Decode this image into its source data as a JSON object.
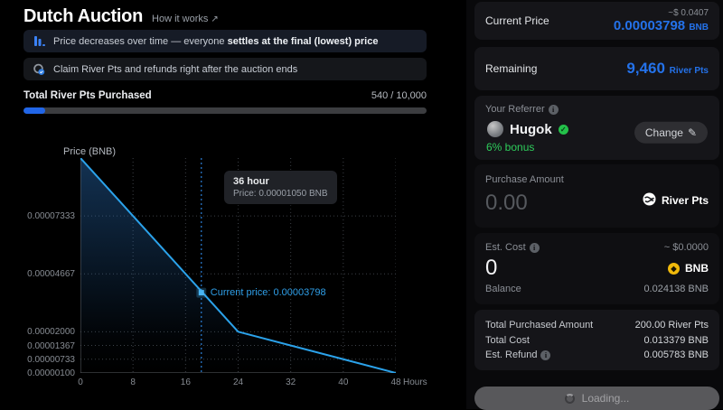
{
  "header": {
    "title": "Dutch Auction",
    "link": "How it works",
    "link_arrow": "↗"
  },
  "banners": [
    {
      "icon": "bar-chart-icon",
      "text_normal": "Price decreases over time — everyone ",
      "text_bold": "settles at the final (lowest) price"
    },
    {
      "icon": "claim-coins-icon",
      "text_normal": "Claim River Pts and refunds right after the auction ends",
      "text_bold": ""
    }
  ],
  "progress": {
    "label": "Total River Pts Purchased",
    "value": "540 / 10,000",
    "percent": 5.4
  },
  "chart_data": {
    "type": "line",
    "ylabel": "Price (BNB)",
    "xlabel": "Hours",
    "x": [
      0,
      24,
      48
    ],
    "y": [
      0.0001,
      2e-05,
      1e-06
    ],
    "xlim": [
      0,
      48
    ],
    "ylim": [
      1e-06,
      0.0001
    ],
    "xticks": [
      0,
      8,
      16,
      24,
      32,
      40,
      48
    ],
    "yticks": [
      1e-06,
      7.33e-06,
      1.367e-05,
      2e-05,
      4.667e-05,
      7.333e-05
    ],
    "ytick_labels": [
      "0.00000100",
      "0.00000733",
      "0.00001367",
      "0.00002000",
      "0.00004667",
      "0.00007333"
    ],
    "grid": true,
    "line_color": "#2ba2ea",
    "current_point": {
      "x": 18.4,
      "y": 3.798e-05,
      "label": "Current price: 0.00003798"
    },
    "tooltip": {
      "title": "36 hour",
      "value": "Price: 0.00001050 BNB"
    }
  },
  "panel": {
    "current_price": {
      "label": "Current Price",
      "usd": "~$ 0.0407",
      "value": "0.00003798",
      "unit": "BNB"
    },
    "remaining": {
      "label": "Remaining",
      "value": "9,460",
      "unit": "River Pts"
    },
    "referrer": {
      "label": "Your Referrer",
      "name": "Hugok",
      "bonus": "6% bonus",
      "change_label": "Change",
      "pencil": "✎",
      "badge": "✓"
    },
    "purchase": {
      "label": "Purchase Amount",
      "placeholder": "0.00",
      "token": "River Pts"
    },
    "est_cost": {
      "label": "Est. Cost",
      "usd": "~ $0.0000",
      "value": "0",
      "token": "BNB",
      "coin_glyph": "◆",
      "balance_label": "Balance",
      "balance_value": "0.024138 BNB"
    },
    "totals": [
      {
        "label": "Total Purchased Amount",
        "value": "200.00 River Pts"
      },
      {
        "label": "Total Cost",
        "value": "0.013379 BNB"
      },
      {
        "label": "Est. Refund",
        "value": "0.005783 BNB"
      }
    ],
    "action": {
      "label": "Loading..."
    }
  },
  "colors": {
    "accent_blue": "#2472ea",
    "chart_blue": "#2ba2ea",
    "green": "#2ecc5b",
    "progress_blue": "#2166e8",
    "bnb_yellow": "#f0b90b"
  }
}
